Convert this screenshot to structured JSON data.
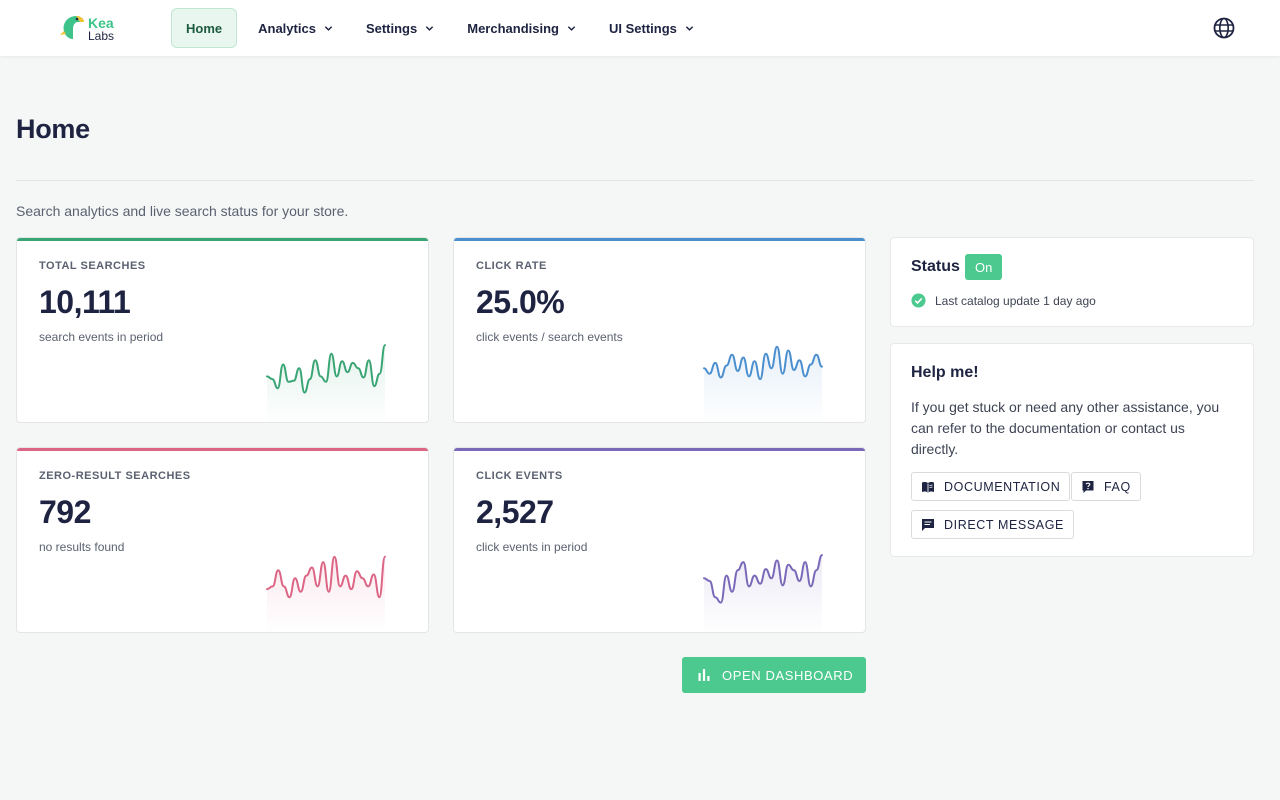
{
  "brand": {
    "name_top": "Kea",
    "name_bottom": "Labs"
  },
  "nav": {
    "items": [
      {
        "label": "Home",
        "active": true,
        "dropdown": false
      },
      {
        "label": "Analytics",
        "active": false,
        "dropdown": true
      },
      {
        "label": "Settings",
        "active": false,
        "dropdown": true
      },
      {
        "label": "Merchandising",
        "active": false,
        "dropdown": true
      },
      {
        "label": "UI Settings",
        "active": false,
        "dropdown": true
      }
    ],
    "language_icon": "globe-icon"
  },
  "page": {
    "title": "Home",
    "subtitle": "Search analytics and live search status for your store."
  },
  "cards": [
    {
      "label": "TOTAL SEARCHES",
      "value": "10,111",
      "desc": "search events in period",
      "color": "#3aa574",
      "trend": [
        0.4,
        0.35,
        0.18,
        0.62,
        0.3,
        0.32,
        0.55,
        0.1,
        0.35,
        0.7,
        0.4,
        0.3,
        0.82,
        0.4,
        0.68,
        0.48,
        0.65,
        0.55,
        0.38,
        0.7,
        0.22,
        0.45,
        0.98
      ]
    },
    {
      "label": "CLICK RATE",
      "value": "25.0%",
      "desc": "click events / search events",
      "color": "#4c8fcf",
      "trend": [
        0.55,
        0.45,
        0.65,
        0.38,
        0.6,
        0.8,
        0.5,
        0.75,
        0.4,
        0.68,
        0.35,
        0.82,
        0.55,
        0.95,
        0.45,
        0.88,
        0.52,
        0.7,
        0.4,
        0.62,
        0.8,
        0.58
      ]
    },
    {
      "label": "ZERO-RESULT SEARCHES",
      "value": "792",
      "desc": "no results found",
      "color": "#dc6484",
      "trend": [
        0.35,
        0.4,
        0.7,
        0.4,
        0.2,
        0.55,
        0.3,
        0.6,
        0.75,
        0.4,
        0.85,
        0.3,
        0.95,
        0.4,
        0.6,
        0.35,
        0.68,
        0.55,
        0.4,
        0.62,
        0.2,
        0.95
      ]
    },
    {
      "label": "CLICK EVENTS",
      "value": "2,527",
      "desc": "click events in period",
      "color": "#7a68b8",
      "trend": [
        0.55,
        0.5,
        0.2,
        0.1,
        0.6,
        0.3,
        0.7,
        0.85,
        0.4,
        0.6,
        0.45,
        0.72,
        0.55,
        0.88,
        0.42,
        0.8,
        0.7,
        0.5,
        0.85,
        0.4,
        0.7,
        0.98
      ]
    }
  ],
  "dashboard_button": {
    "label": "OPEN DASHBOARD",
    "icon": "bar-chart-icon"
  },
  "status": {
    "title": "Status",
    "badge": "On",
    "badge_color": "#4cc98e",
    "message": "Last catalog update 1 day ago",
    "icon": "check-circle-icon"
  },
  "help": {
    "title": "Help me!",
    "text": "If you get stuck or need any other assistance, you can refer to the documentation or contact us directly.",
    "buttons": [
      {
        "label": "DOCUMENTATION",
        "icon": "book-icon"
      },
      {
        "label": "FAQ",
        "icon": "question-icon"
      },
      {
        "label": "DIRECT MESSAGE",
        "icon": "chat-icon"
      }
    ]
  }
}
